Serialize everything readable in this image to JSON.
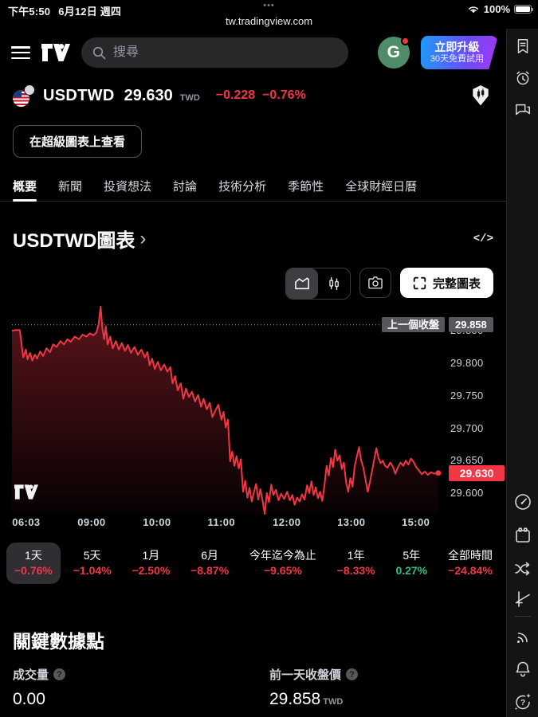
{
  "status_bar": {
    "time": "下午5:50",
    "date": "6月12日 週四",
    "dots": "•••",
    "battery_pct": "100%",
    "url": "tw.tradingview.com"
  },
  "header": {
    "search_placeholder": "搜尋",
    "avatar_letter": "G",
    "upgrade_line1": "立即升級",
    "upgrade_line2": "30天免費試用"
  },
  "symbol": {
    "ticker": "USDTWD",
    "price": "29.630",
    "currency": "TWD",
    "change": "−0.228",
    "change_pct": "−0.76%"
  },
  "supercharts_button": "在超級圖表上查看",
  "tabs": [
    {
      "label": "概要",
      "active": true
    },
    {
      "label": "新聞",
      "active": false
    },
    {
      "label": "投資想法",
      "active": false
    },
    {
      "label": "討論",
      "active": false
    },
    {
      "label": "技術分析",
      "active": false
    },
    {
      "label": "季節性",
      "active": false
    },
    {
      "label": "全球財經日曆",
      "active": false
    }
  ],
  "chart_section": {
    "title": "USDTWD圖表",
    "chevron": "›",
    "code_icon": "</>",
    "fullchart_label": "完整圖表"
  },
  "chart": {
    "prev_close_label": "上一個收盤",
    "prev_close_value": "29.858",
    "current_price": "29.630"
  },
  "chart_data": {
    "type": "line",
    "title": "USDTWD 1天 走勢圖",
    "line_color": "#f23645",
    "prev_close": 29.858,
    "last_price": 29.63,
    "ylim": [
      29.567,
      29.886
    ],
    "price_ticks": [
      {
        "p": 29.85,
        "label": "29.850"
      },
      {
        "p": 29.8,
        "label": "29.800"
      },
      {
        "p": 29.75,
        "label": "29.750"
      },
      {
        "p": 29.7,
        "label": "29.700"
      },
      {
        "p": 29.65,
        "label": "29.650"
      },
      {
        "p": 29.6,
        "label": "29.600"
      }
    ],
    "time_ticks": [
      {
        "t": 0.033,
        "label": "06:03"
      },
      {
        "t": 0.184,
        "label": "09:00"
      },
      {
        "t": 0.335,
        "label": "10:00"
      },
      {
        "t": 0.484,
        "label": "11:00"
      },
      {
        "t": 0.635,
        "label": "12:00"
      },
      {
        "t": 0.784,
        "label": "13:00"
      },
      {
        "t": 0.933,
        "label": "15:00"
      }
    ],
    "points": [
      [
        0.0,
        29.849
      ],
      [
        0.008,
        29.85
      ],
      [
        0.018,
        29.85
      ],
      [
        0.022,
        29.83
      ],
      [
        0.026,
        29.808
      ],
      [
        0.032,
        29.82
      ],
      [
        0.036,
        29.805
      ],
      [
        0.042,
        29.815
      ],
      [
        0.047,
        29.803
      ],
      [
        0.053,
        29.812
      ],
      [
        0.058,
        29.806
      ],
      [
        0.065,
        29.817
      ],
      [
        0.072,
        29.81
      ],
      [
        0.08,
        29.822
      ],
      [
        0.088,
        29.816
      ],
      [
        0.095,
        29.828
      ],
      [
        0.103,
        29.824
      ],
      [
        0.112,
        29.833
      ],
      [
        0.12,
        29.828
      ],
      [
        0.128,
        29.836
      ],
      [
        0.136,
        29.832
      ],
      [
        0.145,
        29.84
      ],
      [
        0.155,
        29.836
      ],
      [
        0.163,
        29.843
      ],
      [
        0.172,
        29.84
      ],
      [
        0.18,
        29.845
      ],
      [
        0.188,
        29.842
      ],
      [
        0.195,
        29.846
      ],
      [
        0.2,
        29.858
      ],
      [
        0.205,
        29.886
      ],
      [
        0.209,
        29.852
      ],
      [
        0.213,
        29.836
      ],
      [
        0.217,
        29.856
      ],
      [
        0.221,
        29.828
      ],
      [
        0.227,
        29.84
      ],
      [
        0.233,
        29.822
      ],
      [
        0.24,
        29.833
      ],
      [
        0.247,
        29.82
      ],
      [
        0.254,
        29.83
      ],
      [
        0.261,
        29.818
      ],
      [
        0.268,
        29.827
      ],
      [
        0.275,
        29.815
      ],
      [
        0.283,
        29.824
      ],
      [
        0.291,
        29.812
      ],
      [
        0.299,
        29.82
      ],
      [
        0.307,
        29.808
      ],
      [
        0.313,
        29.816
      ],
      [
        0.318,
        29.796
      ],
      [
        0.324,
        29.806
      ],
      [
        0.33,
        29.79
      ],
      [
        0.337,
        29.801
      ],
      [
        0.344,
        29.788
      ],
      [
        0.352,
        29.797
      ],
      [
        0.359,
        29.786
      ],
      [
        0.366,
        29.793
      ],
      [
        0.371,
        29.768
      ],
      [
        0.377,
        29.779
      ],
      [
        0.383,
        29.757
      ],
      [
        0.39,
        29.768
      ],
      [
        0.396,
        29.744
      ],
      [
        0.402,
        29.76
      ],
      [
        0.409,
        29.747
      ],
      [
        0.416,
        29.755
      ],
      [
        0.423,
        29.74
      ],
      [
        0.43,
        29.75
      ],
      [
        0.437,
        29.732
      ],
      [
        0.443,
        29.744
      ],
      [
        0.45,
        29.728
      ],
      [
        0.457,
        29.738
      ],
      [
        0.463,
        29.716
      ],
      [
        0.47,
        29.726
      ],
      [
        0.477,
        29.735
      ],
      [
        0.484,
        29.712
      ],
      [
        0.489,
        29.724
      ],
      [
        0.494,
        29.7
      ],
      [
        0.499,
        29.712
      ],
      [
        0.504,
        29.648
      ],
      [
        0.509,
        29.663
      ],
      [
        0.514,
        29.641
      ],
      [
        0.519,
        29.656
      ],
      [
        0.524,
        29.637
      ],
      [
        0.529,
        29.651
      ],
      [
        0.534,
        29.601
      ],
      [
        0.539,
        29.618
      ],
      [
        0.544,
        29.592
      ],
      [
        0.549,
        29.607
      ],
      [
        0.554,
        29.586
      ],
      [
        0.559,
        29.6
      ],
      [
        0.564,
        29.613
      ],
      [
        0.569,
        29.589
      ],
      [
        0.574,
        29.605
      ],
      [
        0.579,
        29.588
      ],
      [
        0.584,
        29.567
      ],
      [
        0.589,
        29.599
      ],
      [
        0.594,
        29.585
      ],
      [
        0.599,
        29.612
      ],
      [
        0.604,
        29.596
      ],
      [
        0.61,
        29.604
      ],
      [
        0.616,
        29.588
      ],
      [
        0.622,
        29.598
      ],
      [
        0.629,
        29.59
      ],
      [
        0.636,
        29.601
      ],
      [
        0.642,
        29.588
      ],
      [
        0.648,
        29.596
      ],
      [
        0.653,
        29.581
      ],
      [
        0.659,
        29.592
      ],
      [
        0.665,
        29.586
      ],
      [
        0.67,
        29.597
      ],
      [
        0.676,
        29.589
      ],
      [
        0.682,
        29.611
      ],
      [
        0.687,
        29.599
      ],
      [
        0.692,
        29.617
      ],
      [
        0.697,
        29.596
      ],
      [
        0.702,
        29.608
      ],
      [
        0.707,
        29.591
      ],
      [
        0.712,
        29.601
      ],
      [
        0.717,
        29.587
      ],
      [
        0.722,
        29.61
      ],
      [
        0.727,
        29.641
      ],
      [
        0.732,
        29.626
      ],
      [
        0.737,
        29.653
      ],
      [
        0.742,
        29.639
      ],
      [
        0.747,
        29.666
      ],
      [
        0.752,
        29.649
      ],
      [
        0.757,
        29.657
      ],
      [
        0.762,
        29.636
      ],
      [
        0.767,
        29.646
      ],
      [
        0.772,
        29.616
      ],
      [
        0.777,
        29.601
      ],
      [
        0.782,
        29.622
      ],
      [
        0.787,
        29.609
      ],
      [
        0.792,
        29.641
      ],
      [
        0.797,
        29.656
      ],
      [
        0.802,
        29.67
      ],
      [
        0.807,
        29.649
      ],
      [
        0.812,
        29.638
      ],
      [
        0.817,
        29.62
      ],
      [
        0.822,
        29.601
      ],
      [
        0.827,
        29.616
      ],
      [
        0.832,
        29.633
      ],
      [
        0.837,
        29.651
      ],
      [
        0.842,
        29.668
      ],
      [
        0.847,
        29.653
      ],
      [
        0.852,
        29.645
      ],
      [
        0.857,
        29.649
      ],
      [
        0.862,
        29.641
      ],
      [
        0.868,
        29.638
      ],
      [
        0.874,
        29.646
      ],
      [
        0.88,
        29.64
      ],
      [
        0.886,
        29.629
      ],
      [
        0.892,
        29.639
      ],
      [
        0.898,
        29.646
      ],
      [
        0.904,
        29.641
      ],
      [
        0.91,
        29.649
      ],
      [
        0.916,
        29.643
      ],
      [
        0.922,
        29.652
      ],
      [
        0.928,
        29.647
      ],
      [
        0.934,
        29.639
      ],
      [
        0.94,
        29.634
      ],
      [
        0.947,
        29.628
      ],
      [
        0.954,
        29.632
      ],
      [
        0.961,
        29.627
      ],
      [
        0.968,
        29.631
      ],
      [
        0.975,
        29.629
      ],
      [
        0.985,
        29.63
      ]
    ]
  },
  "ranges": [
    {
      "label": "1天",
      "pct": "−0.76%",
      "dir": "down",
      "active": true
    },
    {
      "label": "5天",
      "pct": "−1.04%",
      "dir": "down",
      "active": false
    },
    {
      "label": "1月",
      "pct": "−2.50%",
      "dir": "down",
      "active": false
    },
    {
      "label": "6月",
      "pct": "−8.87%",
      "dir": "down",
      "active": false
    },
    {
      "label": "今年迄今為止",
      "pct": "−9.65%",
      "dir": "down",
      "active": false
    },
    {
      "label": "1年",
      "pct": "−8.33%",
      "dir": "down",
      "active": false
    },
    {
      "label": "5年",
      "pct": "0.27%",
      "dir": "up",
      "active": false
    },
    {
      "label": "全部時間",
      "pct": "−24.84%",
      "dir": "down",
      "active": false
    }
  ],
  "key_data": {
    "heading": "關鍵數據點",
    "items": [
      {
        "label": "成交量",
        "value": "0.00",
        "unit": ""
      },
      {
        "label": "前一天收盤價",
        "value": "29.858",
        "unit": "TWD"
      }
    ]
  },
  "colors": {
    "red": "#f23645",
    "green": "#2ebd85",
    "accent_blue": "#1e9bfa",
    "accent_purple": "#a437f5"
  }
}
